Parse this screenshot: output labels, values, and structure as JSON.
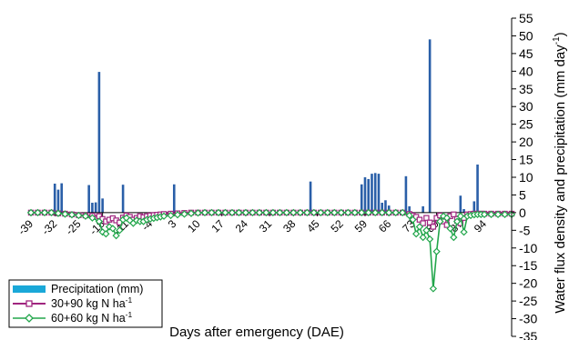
{
  "chart_data": {
    "type": "bar+line",
    "title": "",
    "xlabel": "Days after emergency (DAE)",
    "ylabel": "Water flux density and precipitation (mm day",
    "ylabel_sup": "-1",
    "ylabel_close": ")",
    "xlim": [
      -39,
      102
    ],
    "ylim": [
      -35,
      55
    ],
    "ytick_step": 5,
    "xticks": [
      -39,
      -32,
      -25,
      -18,
      -11,
      -4,
      3,
      10,
      17,
      24,
      31,
      38,
      45,
      52,
      59,
      66,
      73,
      80,
      87,
      94
    ],
    "colors": {
      "precipitation": "#2a5fa8",
      "precipitation_legend": "#1aa8d8",
      "series_30_90": "#a0257f",
      "series_60_60": "#22a64b"
    },
    "legend": {
      "position": "bottom-left",
      "precipitation_label": "Precipitation (mm)",
      "series_30_90_label": "30+90 kg N ha",
      "series_60_60_label": "60+60 kg N ha",
      "unit_sup": "-1"
    },
    "precipitation": {
      "name": "Precipitation (mm)",
      "x": [
        -32,
        -31,
        -30,
        -22,
        -21,
        -20,
        -19,
        -18,
        -12,
        3,
        43,
        58,
        59,
        60,
        61,
        62,
        63,
        64,
        65,
        66,
        71,
        72,
        76,
        78,
        87,
        88,
        91,
        92
      ],
      "values": [
        8.2,
        6.5,
        8.3,
        7.8,
        2.8,
        2.9,
        39.8,
        4.0,
        7.9,
        8.0,
        8.8,
        8.0,
        10.0,
        9.5,
        11.0,
        11.2,
        11.0,
        2.8,
        3.5,
        2.0,
        10.3,
        1.8,
        1.8,
        49.0,
        4.8,
        1.0,
        3.2,
        13.6
      ]
    },
    "series": [
      {
        "name": "30+90 kg N ha-1",
        "x": [
          -39,
          -37,
          -35,
          -33,
          -31,
          -29,
          -27,
          -25,
          -23,
          -21,
          -19,
          -18,
          -17,
          -16,
          -15,
          -14,
          -13,
          -12,
          -11,
          -10,
          -9,
          -8,
          -7,
          -6,
          -5,
          -4,
          -3,
          -2,
          -1,
          0,
          2,
          4,
          6,
          8,
          10,
          12,
          14,
          16,
          18,
          20,
          22,
          24,
          26,
          28,
          30,
          32,
          34,
          36,
          38,
          40,
          42,
          44,
          46,
          48,
          50,
          52,
          54,
          56,
          58,
          60,
          62,
          64,
          66,
          68,
          70,
          72,
          73,
          74,
          75,
          76,
          77,
          78,
          79,
          80,
          81,
          82,
          83,
          84,
          85,
          86,
          87,
          88,
          89,
          90,
          91,
          92,
          93,
          94,
          96,
          98,
          100,
          102
        ],
        "values": [
          0,
          0,
          0,
          0,
          -0.2,
          -0.3,
          -0.5,
          -0.7,
          -0.8,
          -0.9,
          -1.0,
          -1.8,
          -2.5,
          -2.0,
          -1.6,
          -2.2,
          -2.8,
          -1.4,
          -0.8,
          -1.2,
          -2.0,
          -1.5,
          -1.0,
          -1.3,
          -1.0,
          -0.8,
          -0.7,
          -0.6,
          -0.5,
          -0.4,
          -0.3,
          -0.2,
          -0.1,
          0,
          0,
          0,
          0,
          0,
          0,
          0,
          0,
          0,
          0,
          0,
          0,
          0,
          0,
          0,
          0,
          0,
          0,
          0,
          0,
          0,
          0,
          0,
          0,
          0,
          0,
          0,
          0,
          0,
          0,
          0,
          0,
          -0.4,
          -0.8,
          -1.2,
          -2.0,
          -3.0,
          -1.5,
          -2.8,
          -4.0,
          -1.5,
          -0.8,
          -2.5,
          -3.5,
          -1.0,
          -0.5,
          -1.8,
          -3.0,
          -1.5,
          -0.5,
          -0.4,
          -0.3,
          -0.3,
          -0.3,
          -0.3,
          -0.3,
          -0.3,
          -0.3,
          -0.3
        ]
      },
      {
        "name": "60+60 kg N ha-1",
        "x": [
          -39,
          -37,
          -35,
          -33,
          -31,
          -29,
          -27,
          -25,
          -23,
          -21,
          -19,
          -18,
          -17,
          -16,
          -15,
          -14,
          -13,
          -12,
          -11,
          -10,
          -9,
          -8,
          -7,
          -6,
          -5,
          -4,
          -3,
          -2,
          -1,
          0,
          2,
          4,
          6,
          8,
          10,
          12,
          14,
          16,
          18,
          20,
          22,
          24,
          26,
          28,
          30,
          32,
          34,
          36,
          38,
          40,
          42,
          44,
          46,
          48,
          50,
          52,
          54,
          56,
          58,
          60,
          62,
          64,
          66,
          68,
          70,
          72,
          73,
          74,
          75,
          76,
          77,
          78,
          79,
          80,
          81,
          82,
          83,
          84,
          85,
          86,
          87,
          88,
          89,
          90,
          91,
          92,
          93,
          94,
          96,
          98,
          100,
          102
        ],
        "values": [
          0,
          0,
          0,
          0,
          -0.2,
          -0.4,
          -0.6,
          -0.8,
          -1.0,
          -1.5,
          -2.5,
          -5.5,
          -6.0,
          -4.0,
          -4.5,
          -6.5,
          -5.0,
          -2.0,
          -1.5,
          -2.2,
          -3.0,
          -2.2,
          -2.5,
          -2.5,
          -2.0,
          -1.8,
          -1.6,
          -1.4,
          -1.2,
          -1.0,
          -0.8,
          -0.6,
          -0.4,
          -0.2,
          -0.1,
          0,
          0,
          0,
          0,
          0,
          0,
          0,
          0,
          0,
          0,
          0,
          0,
          0,
          0,
          0,
          0,
          0,
          0,
          0,
          0,
          0,
          0,
          0,
          0,
          0,
          0,
          0,
          0,
          0,
          0,
          -0.8,
          -2.0,
          -6.0,
          -4.0,
          -7.0,
          -5.0,
          -7.5,
          -21.5,
          -11.0,
          -2.5,
          -1.0,
          -1.5,
          -4.5,
          -7.0,
          -2.5,
          -1.0,
          -5.5,
          -1.0,
          -0.8,
          -0.6,
          -0.5,
          -0.5,
          -0.5,
          -0.5,
          -0.5,
          -0.5,
          -0.5
        ]
      }
    ]
  }
}
